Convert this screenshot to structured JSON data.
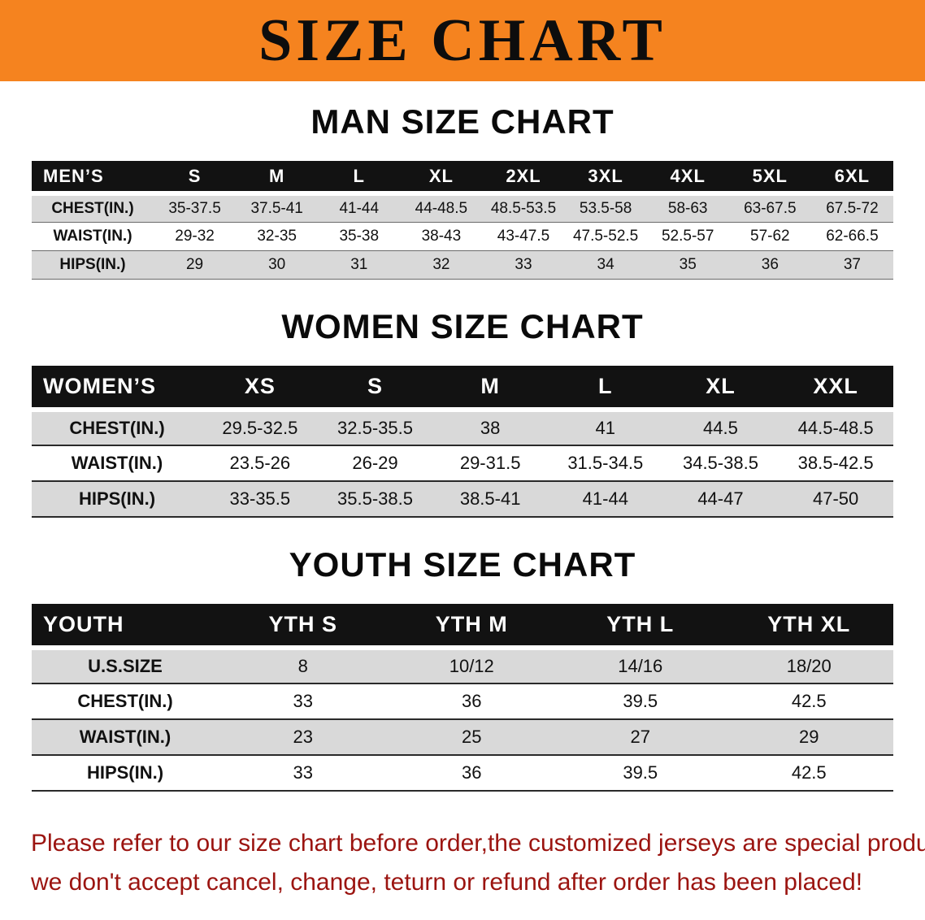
{
  "banner": {
    "title": "SIZE CHART",
    "bg_color": "#f5831f",
    "text_color": "#0d0d0d"
  },
  "colors": {
    "table_header_bg": "#121212",
    "table_header_text": "#ffffff",
    "row_stripe": "#d9d9d9",
    "notice_text": "#9b1410"
  },
  "sections": [
    {
      "id": "men",
      "heading": "MAN SIZE CHART",
      "table": {
        "header": [
          "MEN’S",
          "S",
          "M",
          "L",
          "XL",
          "2XL",
          "3XL",
          "4XL",
          "5XL",
          "6XL"
        ],
        "rows": [
          [
            "CHEST(IN.)",
            "35-37.5",
            "37.5-41",
            "41-44",
            "44-48.5",
            "48.5-53.5",
            "53.5-58",
            "58-63",
            "63-67.5",
            "67.5-72"
          ],
          [
            "WAIST(IN.)",
            "29-32",
            "32-35",
            "35-38",
            "38-43",
            "43-47.5",
            "47.5-52.5",
            "52.5-57",
            "57-62",
            "62-66.5"
          ],
          [
            "HIPS(IN.)",
            "29",
            "30",
            "31",
            "32",
            "33",
            "34",
            "35",
            "36",
            "37"
          ]
        ]
      }
    },
    {
      "id": "women",
      "heading": "WOMEN SIZE CHART",
      "table": {
        "header": [
          "WOMEN’S",
          "XS",
          "S",
          "M",
          "L",
          "XL",
          "XXL"
        ],
        "rows": [
          [
            "CHEST(IN.)",
            "29.5-32.5",
            "32.5-35.5",
            "38",
            "41",
            "44.5",
            "44.5-48.5"
          ],
          [
            "WAIST(IN.)",
            "23.5-26",
            "26-29",
            "29-31.5",
            "31.5-34.5",
            "34.5-38.5",
            "38.5-42.5"
          ],
          [
            "HIPS(IN.)",
            "33-35.5",
            "35.5-38.5",
            "38.5-41",
            "41-44",
            "44-47",
            "47-50"
          ]
        ]
      }
    },
    {
      "id": "youth",
      "heading": "YOUTH SIZE CHART",
      "table": {
        "header": [
          "YOUTH",
          "YTH S",
          "YTH M",
          "YTH L",
          "YTH XL"
        ],
        "rows": [
          [
            "U.S.SIZE",
            "8",
            "10/12",
            "14/16",
            "18/20"
          ],
          [
            "CHEST(IN.)",
            "33",
            "36",
            "39.5",
            "42.5"
          ],
          [
            "WAIST(IN.)",
            "23",
            "25",
            "27",
            "29"
          ],
          [
            "HIPS(IN.)",
            "33",
            "36",
            "39.5",
            "42.5"
          ]
        ]
      }
    }
  ],
  "footer": {
    "line1": "Please refer to our size chart before order,the customized jerseys are special products,",
    "line2": "we don't accept cancel, change, teturn or refund after order has been placed!"
  }
}
